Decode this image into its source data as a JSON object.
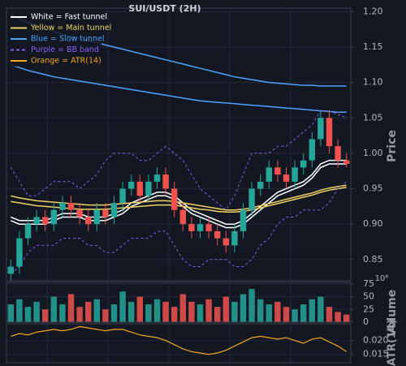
{
  "chart_data": [
    {
      "type": "candlestick",
      "title": "SUI/USDT (2H)",
      "y_label": "Price",
      "open": [
        0.83,
        0.84,
        0.88,
        0.9,
        0.91,
        0.9,
        0.92,
        0.93,
        0.92,
        0.91,
        0.9,
        0.92,
        0.91,
        0.93,
        0.95,
        0.96,
        0.94,
        0.96,
        0.97,
        0.95,
        0.92,
        0.9,
        0.89,
        0.9,
        0.89,
        0.88,
        0.87,
        0.89,
        0.92,
        0.95,
        0.96,
        0.98,
        0.97,
        0.96,
        0.98,
        0.99,
        1.02,
        1.05,
        1.01,
        0.99
      ],
      "high": [
        0.85,
        0.89,
        0.91,
        0.92,
        0.92,
        0.93,
        0.94,
        0.94,
        0.93,
        0.92,
        0.93,
        0.93,
        0.94,
        0.96,
        0.97,
        0.97,
        0.97,
        0.98,
        0.98,
        0.96,
        0.93,
        0.91,
        0.91,
        0.91,
        0.9,
        0.89,
        0.9,
        0.93,
        0.96,
        0.97,
        0.99,
        0.99,
        0.98,
        0.99,
        1.0,
        1.03,
        1.06,
        1.06,
        1.02,
        1.0
      ],
      "low": [
        0.82,
        0.83,
        0.87,
        0.89,
        0.89,
        0.89,
        0.91,
        0.91,
        0.9,
        0.89,
        0.89,
        0.9,
        0.9,
        0.92,
        0.94,
        0.93,
        0.93,
        0.95,
        0.94,
        0.91,
        0.89,
        0.88,
        0.88,
        0.88,
        0.87,
        0.86,
        0.86,
        0.88,
        0.91,
        0.94,
        0.95,
        0.96,
        0.95,
        0.95,
        0.97,
        0.98,
        1.01,
        1.0,
        0.98,
        0.98
      ],
      "close": [
        0.84,
        0.88,
        0.9,
        0.91,
        0.9,
        0.92,
        0.93,
        0.92,
        0.91,
        0.9,
        0.92,
        0.91,
        0.93,
        0.95,
        0.96,
        0.94,
        0.96,
        0.97,
        0.95,
        0.92,
        0.9,
        0.89,
        0.9,
        0.89,
        0.88,
        0.87,
        0.89,
        0.92,
        0.95,
        0.96,
        0.98,
        0.97,
        0.96,
        0.98,
        0.99,
        1.02,
        1.05,
        1.01,
        0.99,
        0.985
      ],
      "up_color": "#26a69a",
      "down_color": "#ef5350",
      "series": [
        {
          "name": "White = Fast tunnel",
          "color": "#ffffff",
          "dashed": false,
          "upper": [
            0.91,
            0.905,
            0.905,
            0.905,
            0.905,
            0.91,
            0.915,
            0.915,
            0.915,
            0.91,
            0.91,
            0.91,
            0.915,
            0.92,
            0.93,
            0.935,
            0.94,
            0.945,
            0.945,
            0.94,
            0.93,
            0.92,
            0.915,
            0.91,
            0.905,
            0.9,
            0.9,
            0.905,
            0.915,
            0.925,
            0.935,
            0.945,
            0.95,
            0.955,
            0.96,
            0.97,
            0.985,
            0.99,
            0.99,
            0.99
          ],
          "lower": [
            0.905,
            0.9,
            0.9,
            0.9,
            0.9,
            0.905,
            0.91,
            0.91,
            0.91,
            0.905,
            0.905,
            0.905,
            0.91,
            0.915,
            0.925,
            0.93,
            0.935,
            0.94,
            0.94,
            0.935,
            0.925,
            0.915,
            0.91,
            0.905,
            0.9,
            0.895,
            0.895,
            0.9,
            0.91,
            0.92,
            0.93,
            0.94,
            0.945,
            0.95,
            0.955,
            0.965,
            0.98,
            0.985,
            0.985,
            0.985
          ]
        },
        {
          "name": "Yellow = Main tunnel",
          "color": "#f0d264",
          "dashed": false,
          "upper": [
            0.94,
            0.937,
            0.935,
            0.933,
            0.932,
            0.931,
            0.93,
            0.929,
            0.928,
            0.927,
            0.927,
            0.927,
            0.928,
            0.929,
            0.93,
            0.931,
            0.932,
            0.933,
            0.933,
            0.932,
            0.93,
            0.928,
            0.926,
            0.924,
            0.922,
            0.92,
            0.92,
            0.921,
            0.923,
            0.926,
            0.929,
            0.932,
            0.935,
            0.938,
            0.941,
            0.944,
            0.948,
            0.951,
            0.953,
            0.955
          ],
          "lower": [
            0.932,
            0.93,
            0.928,
            0.926,
            0.925,
            0.924,
            0.923,
            0.922,
            0.921,
            0.921,
            0.921,
            0.921,
            0.922,
            0.923,
            0.924,
            0.925,
            0.926,
            0.927,
            0.927,
            0.927,
            0.925,
            0.923,
            0.921,
            0.92,
            0.918,
            0.917,
            0.917,
            0.918,
            0.92,
            0.923,
            0.926,
            0.929,
            0.932,
            0.935,
            0.938,
            0.941,
            0.945,
            0.948,
            0.95,
            0.952
          ]
        },
        {
          "name": "Blue = Slow tunnel",
          "color": "#4da3ff",
          "dashed": false,
          "upper": [
            1.196,
            1.19,
            1.185,
            1.18,
            1.176,
            1.172,
            1.168,
            1.165,
            1.162,
            1.159,
            1.156,
            1.153,
            1.15,
            1.147,
            1.144,
            1.141,
            1.138,
            1.135,
            1.132,
            1.129,
            1.126,
            1.123,
            1.12,
            1.117,
            1.114,
            1.111,
            1.108,
            1.106,
            1.104,
            1.102,
            1.1,
            1.099,
            1.098,
            1.097,
            1.096,
            1.096,
            1.095,
            1.095,
            1.095,
            1.095
          ],
          "lower": [
            1.125,
            1.121,
            1.117,
            1.114,
            1.111,
            1.108,
            1.106,
            1.104,
            1.102,
            1.1,
            1.098,
            1.096,
            1.094,
            1.092,
            1.09,
            1.088,
            1.086,
            1.084,
            1.082,
            1.08,
            1.078,
            1.076,
            1.074,
            1.073,
            1.072,
            1.071,
            1.07,
            1.069,
            1.068,
            1.067,
            1.066,
            1.065,
            1.064,
            1.063,
            1.062,
            1.061,
            1.06,
            1.059,
            1.058,
            1.058
          ]
        },
        {
          "name": "Purple = BB band",
          "color": "#8b5cf6",
          "dashed": true,
          "upper": [
            0.98,
            0.96,
            0.94,
            0.94,
            0.95,
            0.96,
            0.96,
            0.96,
            0.95,
            0.96,
            0.97,
            0.99,
            1.0,
            1.0,
            1.0,
            0.99,
            0.99,
            1.0,
            1.01,
            1.0,
            0.99,
            0.97,
            0.95,
            0.94,
            0.93,
            0.92,
            0.94,
            0.97,
            1.0,
            1.0,
            1.0,
            1.01,
            1.01,
            1.02,
            1.03,
            1.04,
            1.06,
            1.06,
            1.055,
            1.05
          ],
          "lower": [
            0.83,
            0.84,
            0.86,
            0.87,
            0.87,
            0.87,
            0.88,
            0.88,
            0.88,
            0.87,
            0.87,
            0.86,
            0.86,
            0.87,
            0.88,
            0.88,
            0.88,
            0.89,
            0.89,
            0.87,
            0.85,
            0.84,
            0.84,
            0.85,
            0.85,
            0.85,
            0.84,
            0.84,
            0.85,
            0.87,
            0.88,
            0.9,
            0.91,
            0.91,
            0.92,
            0.92,
            0.92,
            0.93,
            0.95,
            0.96
          ]
        }
      ],
      "ylim": [
        0.82,
        1.205
      ],
      "yticks": [
        {
          "value": 0.85,
          "label": "0.85"
        },
        {
          "value": 0.9,
          "label": "0.90"
        },
        {
          "value": 0.95,
          "label": "0.95"
        },
        {
          "value": 1.0,
          "label": "1.00"
        },
        {
          "value": 1.05,
          "label": "1.05"
        },
        {
          "value": 1.1,
          "label": "1.10"
        },
        {
          "value": 1.15,
          "label": "1.15"
        },
        {
          "value": 1.2,
          "label": "1.20"
        }
      ],
      "grid": true
    },
    {
      "type": "bar",
      "y_label": "Volume",
      "y_multiplier": "10⁶",
      "values": [
        35,
        45,
        30,
        40,
        25,
        50,
        35,
        55,
        30,
        40,
        45,
        25,
        35,
        60,
        40,
        50,
        35,
        45,
        40,
        30,
        55,
        40,
        35,
        45,
        30,
        50,
        40,
        55,
        65,
        45,
        35,
        40,
        30,
        25,
        35,
        45,
        50,
        30,
        20,
        15
      ],
      "ylim": [
        0,
        78
      ],
      "yticks": [
        0,
        25,
        50,
        75
      ],
      "grid": true
    },
    {
      "type": "line",
      "y_label": "ATR(14)",
      "series": [
        {
          "name": "Orange = ATR(14)",
          "color": "#f5a623",
          "values": [
            0.0215,
            0.0225,
            0.022,
            0.023,
            0.0235,
            0.024,
            0.0235,
            0.024,
            0.025,
            0.0245,
            0.024,
            0.0235,
            0.024,
            0.024,
            0.023,
            0.022,
            0.0215,
            0.021,
            0.02,
            0.0185,
            0.017,
            0.016,
            0.0155,
            0.015,
            0.0155,
            0.0165,
            0.018,
            0.0195,
            0.021,
            0.0215,
            0.021,
            0.0205,
            0.021,
            0.02,
            0.019,
            0.0205,
            0.021,
            0.0195,
            0.018,
            0.016
          ]
        }
      ],
      "ylim": [
        0.012,
        0.026
      ],
      "yticks": [
        {
          "value": 0.015,
          "label": "0.015"
        },
        {
          "value": 0.02,
          "label": "0.020"
        }
      ],
      "grid": true
    }
  ]
}
